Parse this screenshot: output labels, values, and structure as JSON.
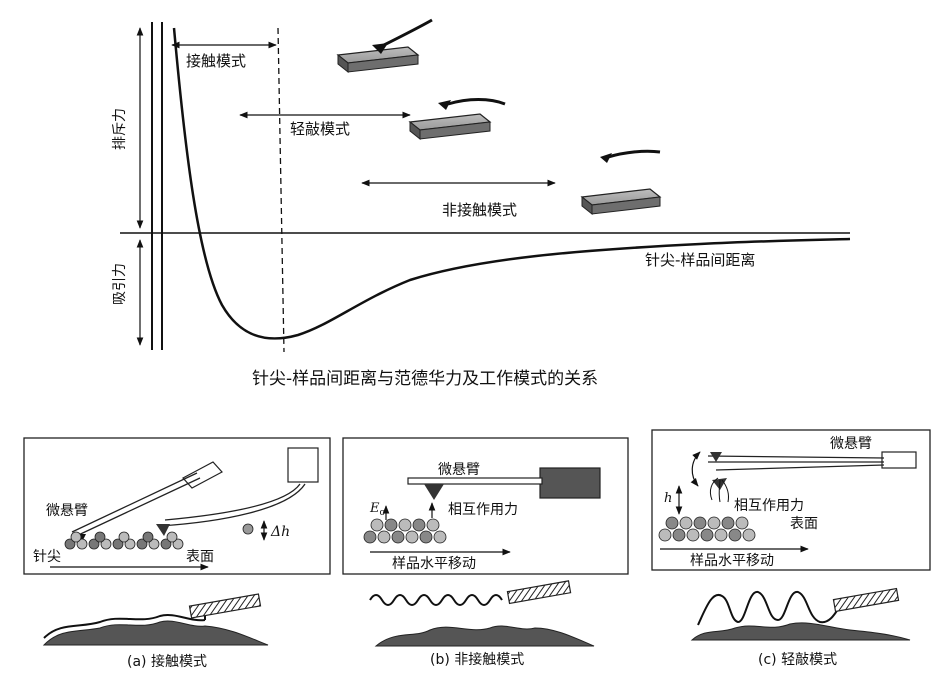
{
  "top": {
    "y_repulsive": "排斥力",
    "y_attractive": "吸引力",
    "x_axis_label": "针尖-样品间距离",
    "mode_contact": "接触模式",
    "mode_tapping": "轻敲模式",
    "mode_noncontact": "非接触模式",
    "caption": "针尖-样品间距离与范德华力及工作模式的关系"
  },
  "panel_a": {
    "cantilever": "微悬臂",
    "tip": "针尖",
    "surface": "表面",
    "delta_h": "Δh",
    "caption": "(a) 接触模式"
  },
  "panel_b": {
    "cantilever": "微悬臂",
    "force": "相互作用力",
    "e0": "E",
    "e0_sub": "o",
    "scan": "样品水平移动",
    "caption": "(b) 非接触模式"
  },
  "panel_c": {
    "cantilever": "微悬臂",
    "force": "相互作用力",
    "surface": "表面",
    "h": "h",
    "scan": "样品水平移动",
    "caption": "(c) 轻敲模式"
  }
}
